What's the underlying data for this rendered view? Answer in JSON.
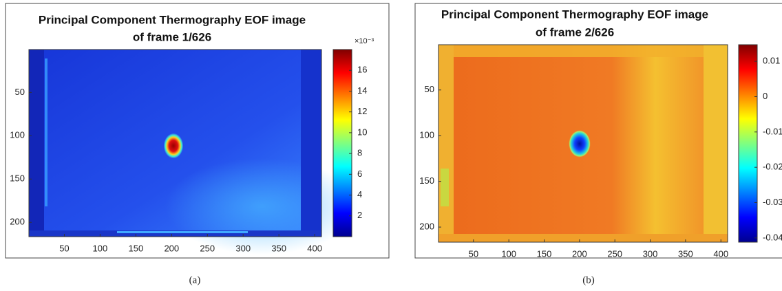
{
  "chart_data": [
    {
      "type": "heatmap",
      "title": [
        "Principal Component Thermography EOF image",
        "of frame 1/626"
      ],
      "xlim": [
        0.5,
        409.5
      ],
      "ylim": [
        0.5,
        216.5
      ],
      "xticks": [
        50,
        100,
        150,
        200,
        250,
        300,
        350,
        400
      ],
      "yticks": [
        50,
        100,
        150,
        200
      ],
      "colormap": "jet",
      "clim": [
        0,
        18
      ],
      "cticks": [
        2,
        4,
        6,
        8,
        10,
        12,
        14,
        16
      ],
      "colorbar_scale": "×10⁻³",
      "caption": "(a)"
    },
    {
      "type": "heatmap",
      "title": [
        "Principal Component Thermography EOF image",
        "of frame 2/626"
      ],
      "xlim": [
        0.5,
        409.5
      ],
      "ylim": [
        0.5,
        216.5
      ],
      "xticks": [
        50,
        100,
        150,
        200,
        250,
        300,
        350,
        400
      ],
      "yticks": [
        50,
        100,
        150,
        200
      ],
      "colormap": "jet",
      "clim": [
        -0.0412,
        0.0147
      ],
      "cticks": [
        0.01,
        0,
        -0.01,
        -0.02,
        -0.03,
        -0.04
      ],
      "caption": "(b)"
    }
  ]
}
